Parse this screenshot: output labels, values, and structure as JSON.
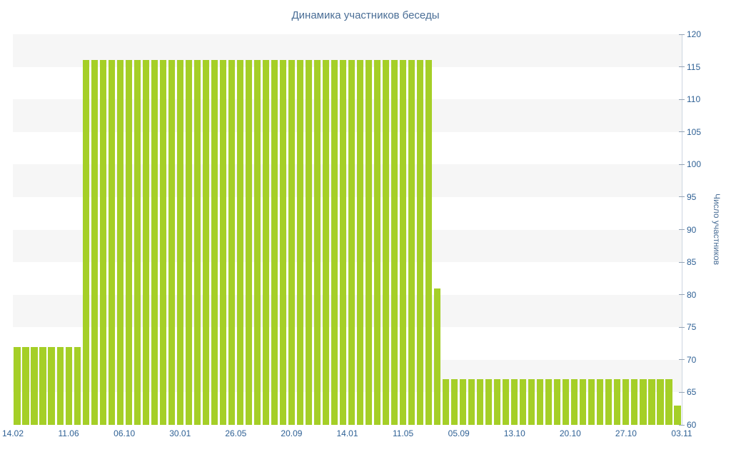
{
  "chart_data": {
    "type": "bar",
    "title": "Динамика участников беседы",
    "ylabel": "Число участников",
    "xlabel": "",
    "ylim": [
      60,
      120
    ],
    "ytick_step": 5,
    "grid": "alternating-horizontal-bands",
    "legend": "none",
    "bar_color": "#a5cf27",
    "band_color": "#f6f6f6",
    "title_color": "#4a6e96",
    "tick_label_color": "#2f6195",
    "x_axis_labels": [
      "14.02",
      "11.06",
      "06.10",
      "30.01",
      "26.05",
      "20.09",
      "14.01",
      "11.05",
      "05.09",
      "13.10",
      "20.10",
      "27.10",
      "03.11"
    ],
    "values": [
      72,
      72,
      72,
      72,
      72,
      72,
      72,
      72,
      116,
      116,
      116,
      116,
      116,
      116,
      116,
      116,
      116,
      116,
      116,
      116,
      116,
      116,
      116,
      116,
      116,
      116,
      116,
      116,
      116,
      116,
      116,
      116,
      116,
      116,
      116,
      116,
      116,
      116,
      116,
      116,
      116,
      116,
      116,
      116,
      116,
      116,
      116,
      116,
      116,
      81,
      67,
      67,
      67,
      67,
      67,
      67,
      67,
      67,
      67,
      67,
      67,
      67,
      67,
      67,
      67,
      67,
      67,
      67,
      67,
      67,
      67,
      67,
      67,
      67,
      67,
      67,
      67,
      63
    ],
    "y_tick_labels": [
      60,
      65,
      70,
      75,
      80,
      85,
      90,
      95,
      100,
      105,
      110,
      115,
      120
    ]
  }
}
